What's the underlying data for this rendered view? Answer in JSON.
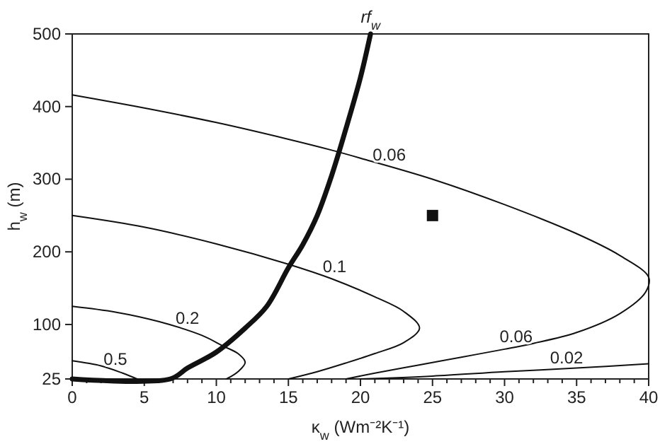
{
  "chart_data": {
    "type": "line",
    "xlabel": "κ$_{w}$ (Wm⁻²K⁻¹)",
    "ylabel": "h$_{w}$ (m)",
    "xlim": [
      0,
      40
    ],
    "ylim": [
      25,
      500
    ],
    "xticks": [
      0,
      {
        "value": 1,
        "label": null
      },
      {
        "value": 2,
        "label": null
      },
      {
        "value": 3,
        "label": null
      },
      {
        "value": 4,
        "label": null
      },
      5,
      {
        "value": 6,
        "label": null
      },
      {
        "value": 7,
        "label": null
      },
      {
        "value": 8,
        "label": null
      },
      {
        "value": 9,
        "label": null
      },
      10,
      {
        "value": 11,
        "label": null
      },
      {
        "value": 12,
        "label": null
      },
      {
        "value": 13,
        "label": null
      },
      {
        "value": 14,
        "label": null
      },
      15,
      {
        "value": 16,
        "label": null
      },
      {
        "value": 17,
        "label": null
      },
      {
        "value": 18,
        "label": null
      },
      {
        "value": 19,
        "label": null
      },
      20,
      {
        "value": 21,
        "label": null
      },
      {
        "value": 22,
        "label": null
      },
      {
        "value": 23,
        "label": null
      },
      {
        "value": 24,
        "label": null
      },
      25,
      {
        "value": 26,
        "label": null
      },
      {
        "value": 27,
        "label": null
      },
      {
        "value": 28,
        "label": null
      },
      {
        "value": 29,
        "label": null
      },
      30,
      {
        "value": 31,
        "label": null
      },
      {
        "value": 32,
        "label": null
      },
      {
        "value": 33,
        "label": null
      },
      {
        "value": 34,
        "label": null
      },
      35,
      {
        "value": 36,
        "label": null
      },
      {
        "value": 37,
        "label": null
      },
      {
        "value": 38,
        "label": null
      },
      {
        "value": 39,
        "label": null
      },
      40
    ],
    "yticks": [
      25,
      100,
      200,
      300,
      400,
      500
    ],
    "grid": false,
    "marker": "none",
    "line_style": "solid",
    "series": [
      {
        "color": "#111111",
        "x": [
          0,
          6.8,
          8,
          10,
          12,
          13.5,
          15,
          16,
          17,
          18,
          19,
          20,
          20.7
        ],
        "values": [
          25,
          25,
          40,
          62,
          95,
          125,
          178,
          210,
          250,
          305,
          370,
          440,
          500
        ]
      },
      {
        "color": "#111111",
        "x": [
          0,
          5,
          10,
          15,
          18,
          20,
          25,
          30,
          35,
          38,
          40,
          39.8,
          38,
          35,
          32,
          30,
          27,
          24,
          21,
          19
        ],
        "values": [
          416,
          398,
          378,
          355,
          340,
          329,
          300,
          265,
          225,
          195,
          165,
          145,
          115,
          89,
          74,
          66,
          55,
          44,
          33,
          25
        ]
      },
      {
        "color": "#111111",
        "x": [
          0,
          5,
          10,
          15,
          18,
          21,
          23,
          24.1,
          23,
          21,
          19,
          17,
          15
        ],
        "values": [
          250,
          234,
          211,
          183,
          163,
          138,
          118,
          95,
          75,
          60,
          47,
          35,
          25
        ]
      },
      {
        "color": "#111111",
        "x": [
          0,
          3,
          6,
          9,
          10.5,
          11.5,
          12,
          11.5,
          10.7
        ],
        "values": [
          125,
          117,
          104,
          85,
          70,
          60,
          48,
          35,
          25
        ]
      },
      {
        "color": "#111111",
        "x": [
          0,
          2,
          3.5,
          4.5
        ],
        "values": [
          50,
          43,
          33,
          25
        ]
      },
      {
        "color": "#111111",
        "x": [
          20,
          25,
          30,
          35,
          40
        ],
        "values": [
          25,
          29,
          35,
          40,
          46
        ]
      },
      {
        "type": "scatter",
        "marker": "square",
        "color": "#111111",
        "x": [
          25
        ],
        "values": [
          250
        ]
      }
    ],
    "annotations": [
      {
        "text": "rf$_{w}$",
        "x": 20.7,
        "y": 500
      },
      {
        "text": "0.06",
        "x": 22,
        "y": 318
      },
      {
        "text": "0.1",
        "x": 18.2,
        "y": 164
      },
      {
        "text": "0.2",
        "x": 8,
        "y": 93
      },
      {
        "text": "0.5",
        "x": 3,
        "y": 37
      },
      {
        "text": "0.06",
        "x": 30.8,
        "y": 68
      },
      {
        "text": "0.02",
        "x": 34.3,
        "y": 39
      }
    ]
  }
}
